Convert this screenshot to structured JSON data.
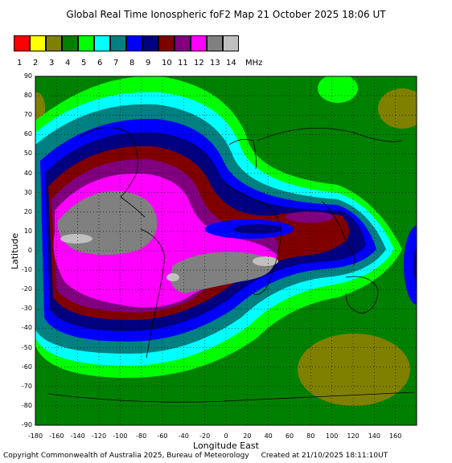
{
  "title": "Global Real Time Ionospheric foF2 Map   21 October 2025 18:06 UT",
  "legend": {
    "colors": [
      "#ff0000",
      "#ffff00",
      "#808000",
      "#008000",
      "#00ff00",
      "#00ffff",
      "#008080",
      "#0000ff",
      "#000080",
      "#800000",
      "#800080",
      "#ff00ff",
      "#808080",
      "#c0c0c0"
    ],
    "labels": [
      "1",
      "2",
      "3",
      "4",
      "5",
      "6",
      "7",
      "8",
      "9",
      "10",
      "11",
      "12",
      "13",
      "14"
    ],
    "unit": "MHz"
  },
  "axes": {
    "ylabel": "Latitude",
    "xlabel": "Longitude East",
    "yticks": [
      "90",
      "80",
      "70",
      "60",
      "50",
      "40",
      "30",
      "20",
      "10",
      "0",
      "-10",
      "-20",
      "-30",
      "-40",
      "-50",
      "-60",
      "-70",
      "-80",
      "-90"
    ],
    "xticks": [
      "-180",
      "-160",
      "-140",
      "-120",
      "-100",
      "-80",
      "-60",
      "-40",
      "-20",
      "0",
      "20",
      "40",
      "60",
      "80",
      "100",
      "120",
      "140",
      "160"
    ]
  },
  "footer": {
    "copyright": "Copyright Commonwealth of Australia 2025, Bureau of Meteorology",
    "created": "Created at 21/10/2025 18:11:10UT"
  }
}
